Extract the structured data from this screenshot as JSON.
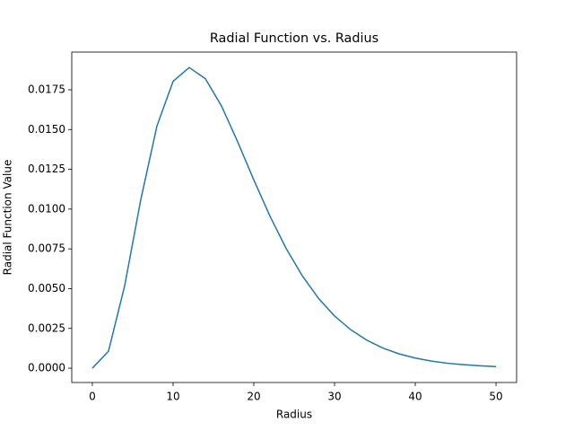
{
  "chart_data": {
    "type": "line",
    "title": "Radial Function vs. Radius",
    "x_label": "Radius",
    "y_label": "Radial Function Value",
    "x": [
      0,
      2,
      4,
      6,
      8,
      10,
      12,
      14,
      16,
      18,
      20,
      22,
      24,
      26,
      28,
      30,
      32,
      34,
      36,
      38,
      40,
      42,
      44,
      46,
      48,
      50
    ],
    "series": [
      {
        "color": "#1f77b4",
        "values": [
          0,
          0.00107,
          0.00517,
          0.01059,
          0.01522,
          0.01803,
          0.0189,
          0.0182,
          0.01648,
          0.01423,
          0.01184,
          0.00956,
          0.00753,
          0.00581,
          0.0044,
          0.00328,
          0.00242,
          0.00176,
          0.00126,
          0.0009,
          0.00064,
          0.00045,
          0.00031,
          0.00022,
          0.00015,
          0.0001
        ]
      }
    ],
    "xlim": [
      -2.55,
      52.55
    ],
    "xticks": [
      0,
      10,
      20,
      30,
      40,
      50
    ],
    "ylim": [
      -0.0009,
      0.01987
    ],
    "yticks": [
      {
        "value": 0,
        "label": "0.0000"
      },
      {
        "value": 0.0025,
        "label": "0.0025"
      },
      {
        "value": 0.005,
        "label": "0.0050"
      },
      {
        "value": 0.0075,
        "label": "0.0075"
      },
      {
        "value": 0.01,
        "label": "0.0100"
      },
      {
        "value": 0.0125,
        "label": "0.0125"
      },
      {
        "value": 0.015,
        "label": "0.0150"
      },
      {
        "value": 0.0175,
        "label": "0.0175"
      }
    ],
    "grid": false
  }
}
